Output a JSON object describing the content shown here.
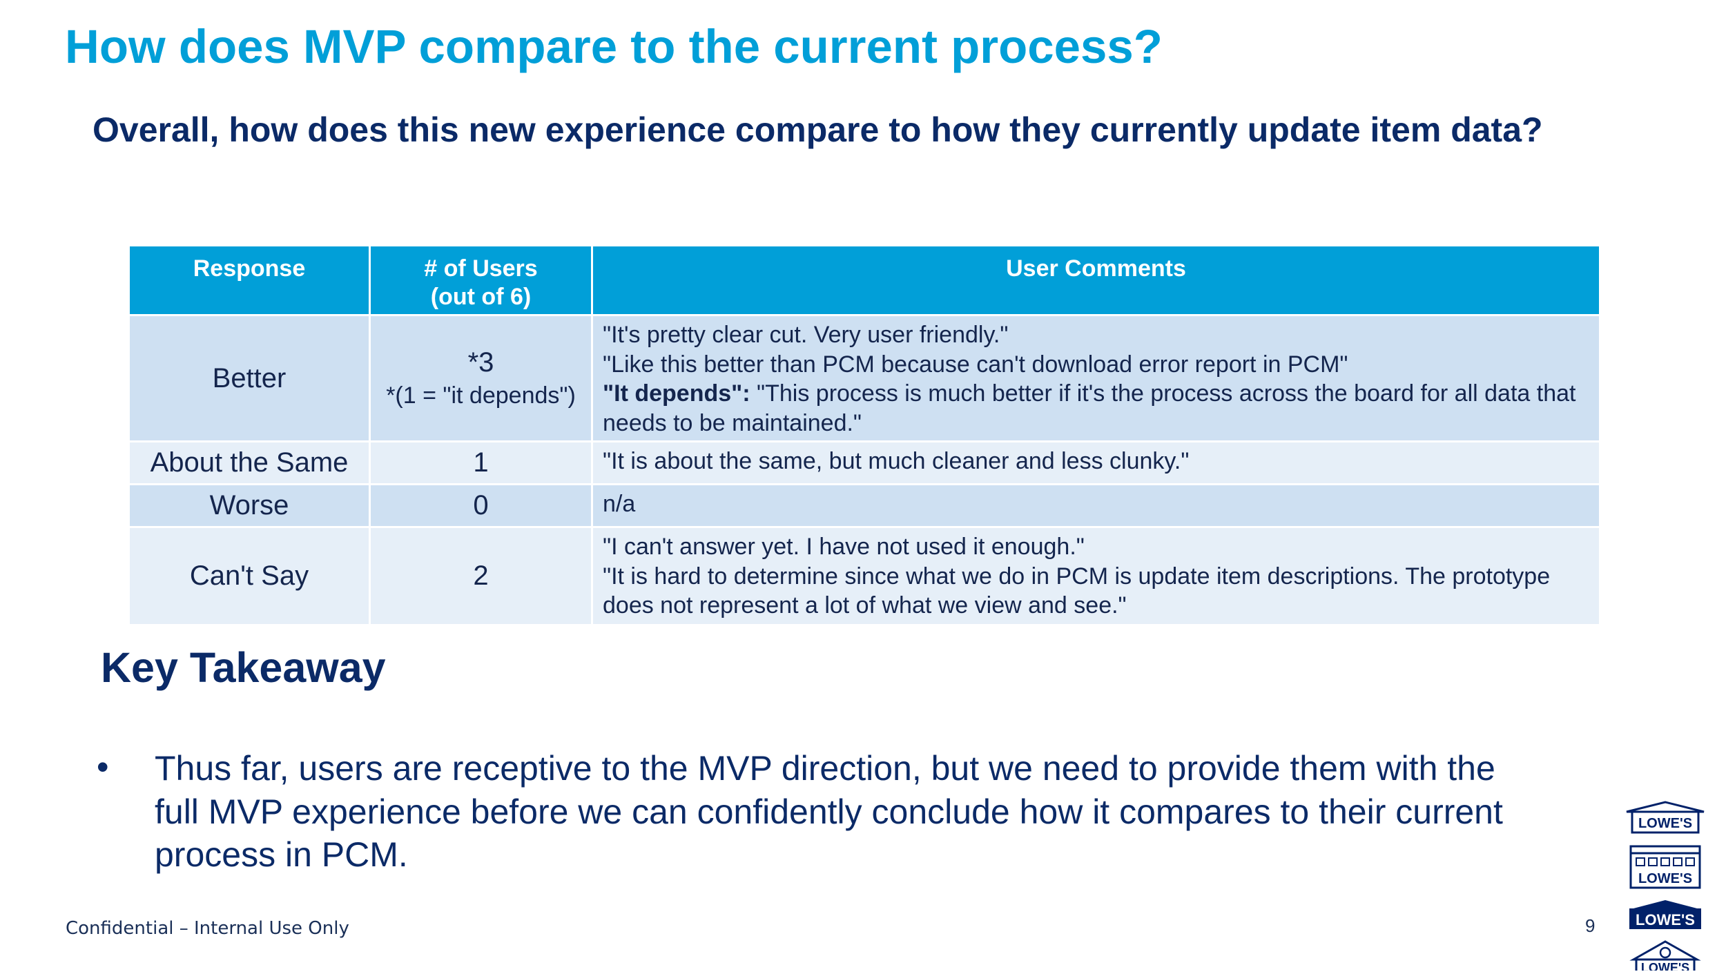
{
  "slide": {
    "title": "How does MVP compare to the current process?",
    "question": "Overall, how does this new experience compare to how they currently update item data?"
  },
  "table": {
    "headers": [
      "Response",
      "# of Users\n(out of 6)",
      "User Comments"
    ],
    "header_users_line1": "# of Users",
    "header_users_line2": "(out of 6)",
    "rows": [
      {
        "response": "Better",
        "users": "*3",
        "users_note": "*(1 = \"it depends\")",
        "comments": [
          "\"It's pretty clear cut. Very user friendly.\"",
          "\"Like this better than PCM because can't download error report in PCM\""
        ],
        "depends_label": "\"It depends\":",
        "depends_text": " \"This process is much better if it's the process across the board for all data that needs to be maintained.\""
      },
      {
        "response": "About the Same",
        "users": "1",
        "comments": [
          "\"It is about the same, but much cleaner and less clunky.\""
        ]
      },
      {
        "response": "Worse",
        "users": "0",
        "comments": [
          "n/a"
        ]
      },
      {
        "response": "Can't Say",
        "users": "2",
        "comments": [
          "\"I can't answer yet. I have not used it enough.\"",
          "\"It is hard to determine since what we do in PCM is update item descriptions. The prototype does not represent a lot of what we view and see.\""
        ]
      }
    ]
  },
  "takeaway": {
    "heading": "Key Takeaway",
    "bullet_symbol": "•",
    "bullet": "Thus far, users are receptive to the MVP direction, but we need to provide them with the full MVP experience before we can confidently conclude how it compares to their current process in PCM."
  },
  "footer": {
    "confidential": "Confidential – Internal Use Only",
    "page_number": "9"
  },
  "logos": {
    "brand": "LOWE'S",
    "icons": [
      "lowes-store-icon",
      "lowes-building-icon",
      "lowes-logo-icon",
      "lowes-house-icon"
    ],
    "colors": {
      "navy": "#012169",
      "title_blue": "#019fd8",
      "text_navy": "#0b2a67"
    }
  }
}
